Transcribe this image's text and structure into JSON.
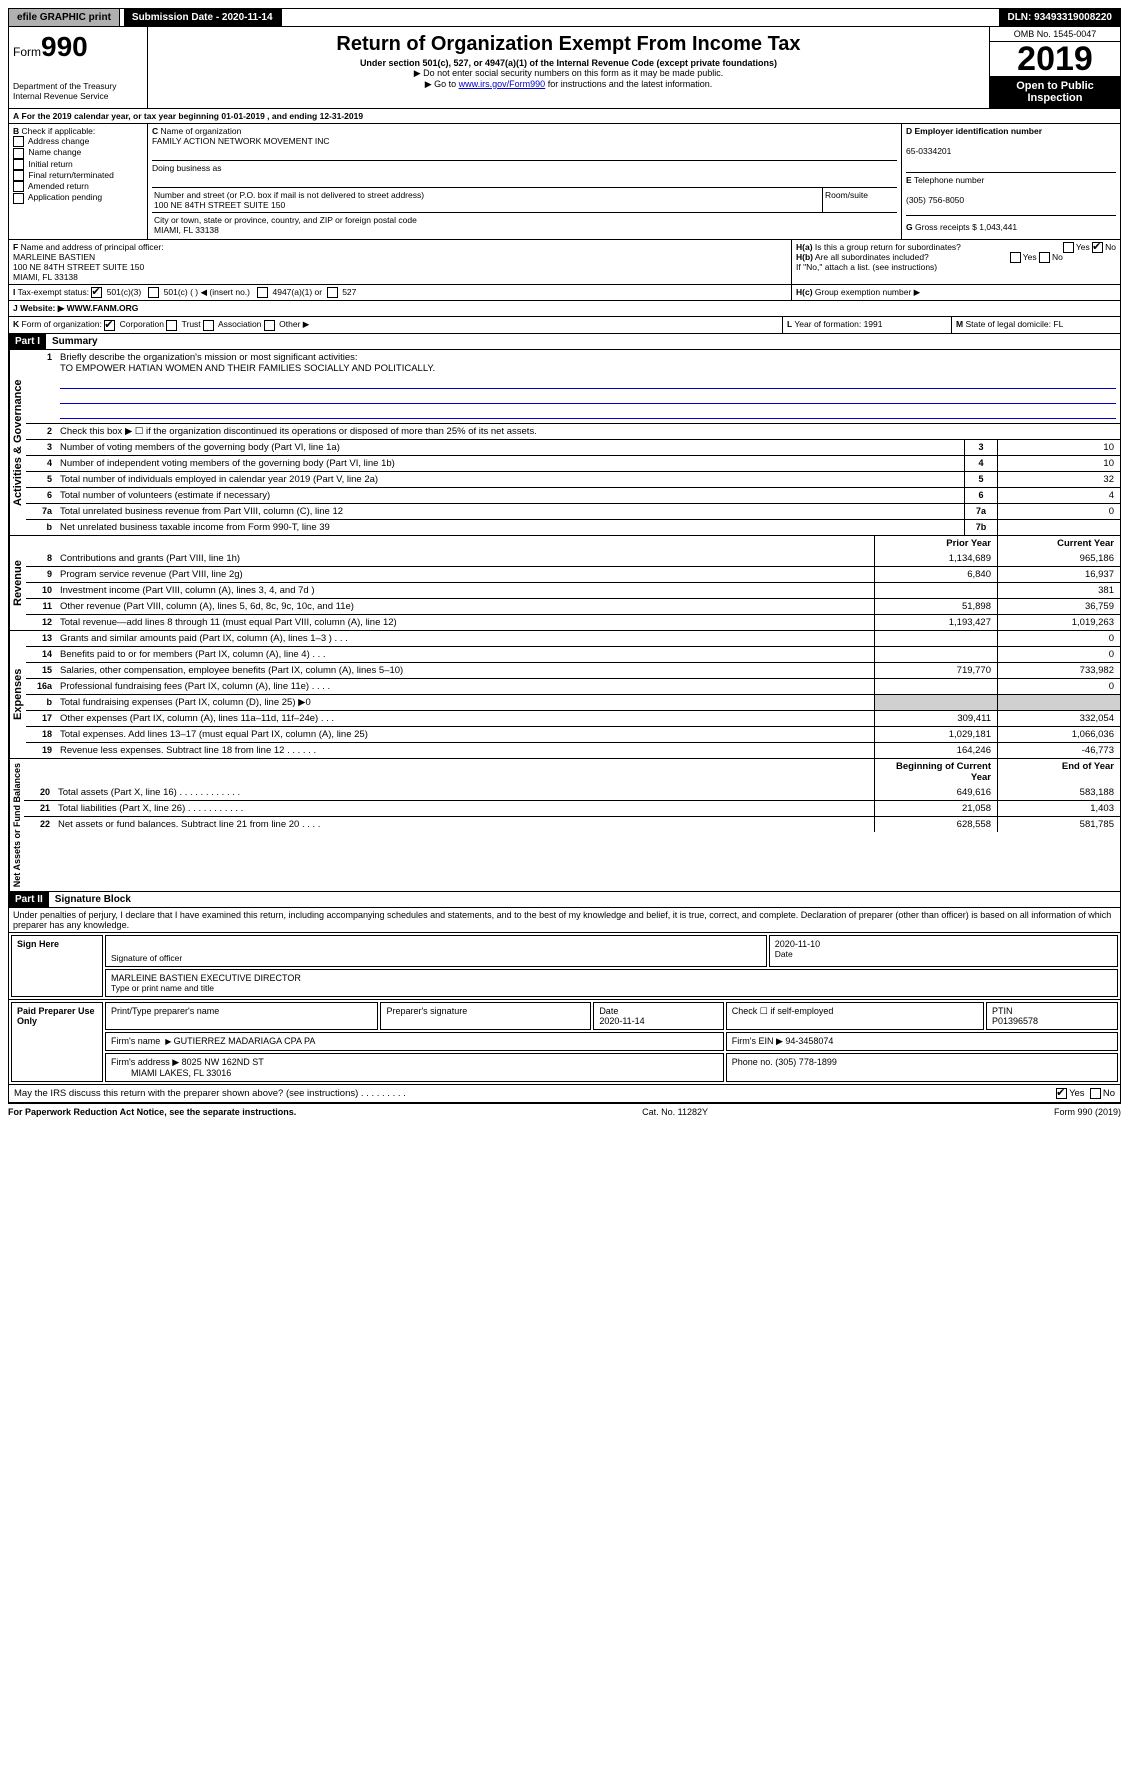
{
  "topbar": {
    "efile": "efile GRAPHIC print",
    "submission": "Submission Date - 2020-11-14",
    "dln": "DLN: 93493319008220"
  },
  "header": {
    "form": "Form",
    "form_no": "990",
    "dept": "Department of the Treasury\nInternal Revenue Service",
    "title": "Return of Organization Exempt From Income Tax",
    "sub1": "Under section 501(c), 527, or 4947(a)(1) of the Internal Revenue Code (except private foundations)",
    "sub2": "▶ Do not enter social security numbers on this form as it may be made public.",
    "sub3_pre": "▶ Go to ",
    "sub3_link": "www.irs.gov/Form990",
    "sub3_post": " for instructions and the latest information.",
    "omb": "OMB No. 1545-0047",
    "year": "2019",
    "inspect": "Open to Public Inspection"
  },
  "periodA": "For the 2019 calendar year, or tax year beginning 01-01-2019   , and ending 12-31-2019",
  "boxB": {
    "label": "Check if applicable:",
    "items": [
      "Address change",
      "Name change",
      "Initial return",
      "Final return/terminated",
      "Amended return",
      "Application pending"
    ]
  },
  "boxC": {
    "label": "Name of organization",
    "name": "FAMILY ACTION NETWORK MOVEMENT INC",
    "dba_label": "Doing business as",
    "addr_label": "Number and street (or P.O. box if mail is not delivered to street address)",
    "room_label": "Room/suite",
    "addr": "100 NE 84TH STREET SUITE 150",
    "city_label": "City or town, state or province, country, and ZIP or foreign postal code",
    "city": "MIAMI, FL  33138"
  },
  "boxD": {
    "label": "Employer identification number",
    "val": "65-0334201"
  },
  "boxE": {
    "label": "Telephone number",
    "val": "(305) 756-8050"
  },
  "boxG": {
    "label": "Gross receipts $",
    "val": "1,043,441"
  },
  "boxF": {
    "label": "Name and address of principal officer:",
    "name": "MARLEINE BASTIEN",
    "addr": "100 NE 84TH STREET SUITE 150\nMIAMI, FL 33138"
  },
  "boxH": {
    "a": "Is this a group return for subordinates?",
    "b": "Are all subordinates included?",
    "note": "If \"No,\" attach a list. (see instructions)",
    "c": "Group exemption number ▶"
  },
  "taxexempt": {
    "label": "Tax-exempt status:",
    "o1": "501(c)(3)",
    "o2": "501(c) (   ) ◀ (insert no.)",
    "o3": "4947(a)(1) or",
    "o4": "527"
  },
  "boxJ": {
    "label": "Website: ▶",
    "val": "WWW.FANM.ORG"
  },
  "boxK": {
    "label": "Form of organization:",
    "o1": "Corporation",
    "o2": "Trust",
    "o3": "Association",
    "o4": "Other ▶"
  },
  "boxL": {
    "label": "Year of formation:",
    "val": "1991"
  },
  "boxM": {
    "label": "State of legal domicile:",
    "val": "FL"
  },
  "part1": {
    "hdr": "Part I",
    "title": "Summary"
  },
  "gov": {
    "label": "Activities & Governance",
    "l1": "Briefly describe the organization's mission or most significant activities:",
    "l1v": "TO EMPOWER HATIAN WOMEN AND THEIR FAMILIES SOCIALLY AND POLITICALLY.",
    "l2": "Check this box ▶ ☐  if the organization discontinued its operations or disposed of more than 25% of its net assets.",
    "l3": "Number of voting members of the governing body (Part VI, line 1a)",
    "l4": "Number of independent voting members of the governing body (Part VI, line 1b)",
    "l5": "Total number of individuals employed in calendar year 2019 (Part V, line 2a)",
    "l6": "Total number of volunteers (estimate if necessary)",
    "l7a": "Total unrelated business revenue from Part VIII, column (C), line 12",
    "l7b": "Net unrelated business taxable income from Form 990-T, line 39",
    "v3": "10",
    "v4": "10",
    "v5": "32",
    "v6": "4",
    "v7a": "0",
    "v7b": ""
  },
  "cols": {
    "prior": "Prior Year",
    "current": "Current Year"
  },
  "rev": {
    "label": "Revenue",
    "rows": [
      {
        "n": "8",
        "d": "Contributions and grants (Part VIII, line 1h)",
        "p": "1,134,689",
        "c": "965,186"
      },
      {
        "n": "9",
        "d": "Program service revenue (Part VIII, line 2g)",
        "p": "6,840",
        "c": "16,937"
      },
      {
        "n": "10",
        "d": "Investment income (Part VIII, column (A), lines 3, 4, and 7d )",
        "p": "",
        "c": "381"
      },
      {
        "n": "11",
        "d": "Other revenue (Part VIII, column (A), lines 5, 6d, 8c, 9c, 10c, and 11e)",
        "p": "51,898",
        "c": "36,759"
      },
      {
        "n": "12",
        "d": "Total revenue—add lines 8 through 11 (must equal Part VIII, column (A), line 12)",
        "p": "1,193,427",
        "c": "1,019,263"
      }
    ]
  },
  "exp": {
    "label": "Expenses",
    "rows": [
      {
        "n": "13",
        "d": "Grants and similar amounts paid (Part IX, column (A), lines 1–3 )   .   .   .",
        "p": "",
        "c": "0"
      },
      {
        "n": "14",
        "d": "Benefits paid to or for members (Part IX, column (A), line 4)   .   .   .",
        "p": "",
        "c": "0"
      },
      {
        "n": "15",
        "d": "Salaries, other compensation, employee benefits (Part IX, column (A), lines 5–10)",
        "p": "719,770",
        "c": "733,982"
      },
      {
        "n": "16a",
        "d": "Professional fundraising fees (Part IX, column (A), line 11e)   .   .   .   .",
        "p": "",
        "c": "0"
      },
      {
        "n": "b",
        "d": "Total fundraising expenses (Part IX, column (D), line 25) ▶0",
        "p": "shade",
        "c": "shade"
      },
      {
        "n": "17",
        "d": "Other expenses (Part IX, column (A), lines 11a–11d, 11f–24e)   .   .   .",
        "p": "309,411",
        "c": "332,054"
      },
      {
        "n": "18",
        "d": "Total expenses. Add lines 13–17 (must equal Part IX, column (A), line 25)",
        "p": "1,029,181",
        "c": "1,066,036"
      },
      {
        "n": "19",
        "d": "Revenue less expenses. Subtract line 18 from line 12   .   .   .   .   .   .",
        "p": "164,246",
        "c": "-46,773"
      }
    ]
  },
  "na": {
    "label": "Net Assets or Fund Balances",
    "hdr_p": "Beginning of Current Year",
    "hdr_c": "End of Year",
    "rows": [
      {
        "n": "20",
        "d": "Total assets (Part X, line 16)   .   .   .   .   .   .   .   .   .   .   .   .",
        "p": "649,616",
        "c": "583,188"
      },
      {
        "n": "21",
        "d": "Total liabilities (Part X, line 26)   .   .   .   .   .   .   .   .   .   .   .",
        "p": "21,058",
        "c": "1,403"
      },
      {
        "n": "22",
        "d": "Net assets or fund balances. Subtract line 21 from line 20   .   .   .   .",
        "p": "628,558",
        "c": "581,785"
      }
    ]
  },
  "part2": {
    "hdr": "Part II",
    "title": "Signature Block"
  },
  "perjury": "Under penalties of perjury, I declare that I have examined this return, including accompanying schedules and statements, and to the best of my knowledge and belief, it is true, correct, and complete. Declaration of preparer (other than officer) is based on all information of which preparer has any knowledge.",
  "sign": {
    "here": "Sign Here",
    "sig": "Signature of officer",
    "date": "2020-11-10",
    "date_lbl": "Date",
    "name": "MARLEINE BASTIEN  EXECUTIVE DIRECTOR",
    "name_lbl": "Type or print name and title"
  },
  "paid": {
    "label": "Paid Preparer Use Only",
    "h1": "Print/Type preparer's name",
    "h2": "Preparer's signature",
    "h3": "Date",
    "h3v": "2020-11-14",
    "h4": "Check ☐ if self-employed",
    "h5": "PTIN",
    "h5v": "P01396578",
    "firm_lbl": "Firm's name",
    "firm": "GUTIERREZ MADARIAGA CPA PA",
    "ein_lbl": "Firm's EIN ▶",
    "ein": "94-3458074",
    "addr_lbl": "Firm's address ▶",
    "addr": "8025 NW 162ND ST",
    "addr2": "MIAMI LAKES, FL  33016",
    "phone_lbl": "Phone no.",
    "phone": "(305) 778-1899"
  },
  "discuss": "May the IRS discuss this return with the preparer shown above? (see instructions)   .   .   .   .   .   .   .   .   .",
  "footer": {
    "l": "For Paperwork Reduction Act Notice, see the separate instructions.",
    "m": "Cat. No. 11282Y",
    "r": "Form 990 (2019)"
  }
}
